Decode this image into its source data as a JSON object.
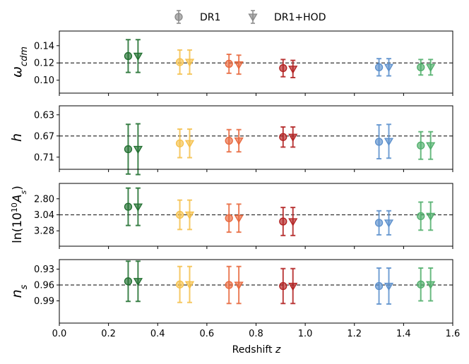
{
  "chart_data": {
    "type": "errorbar",
    "xlabel": "Redshift z",
    "xlim": [
      0.0,
      1.6
    ],
    "xticks": [
      0.0,
      0.2,
      0.4,
      0.6,
      0.8,
      1.0,
      1.2,
      1.4,
      1.6
    ],
    "xtick_labels": [
      "0.0",
      "0.2",
      "0.4",
      "0.6",
      "0.8",
      "1.0",
      "1.2",
      "1.4",
      "1.6"
    ],
    "legend": [
      {
        "name": "DR1",
        "marker": "circle"
      },
      {
        "name": "DR1+HOD",
        "marker": "triangle-down"
      }
    ],
    "bin_colors": [
      "#1f6e2e",
      "#f5c04a",
      "#e8673c",
      "#b22020",
      "#5b8fcc",
      "#4fae6a"
    ],
    "panels": [
      {
        "ylabel": "ω_cdm",
        "yinverted": true,
        "ylim": [
          0.157,
          0.085
        ],
        "yticks": [
          "0.10",
          "0.12",
          "0.14"
        ],
        "ytick_values": [
          0.1,
          0.12,
          0.14
        ],
        "reference": 0.12,
        "series": [
          {
            "name": "DR1",
            "x": [
              0.28,
              0.49,
              0.69,
              0.91,
              1.3,
              1.47
            ],
            "y": [
              0.128,
              0.121,
              0.119,
              0.114,
              0.115,
              0.115
            ],
            "err_lo": [
              0.019,
              0.014,
              0.011,
              0.01,
              0.01,
              0.009
            ],
            "err_hi": [
              0.019,
              0.014,
              0.011,
              0.01,
              0.01,
              0.009
            ]
          },
          {
            "name": "DR1+HOD",
            "x": [
              0.32,
              0.53,
              0.73,
              0.95,
              1.34,
              1.51
            ],
            "y": [
              0.128,
              0.121,
              0.118,
              0.113,
              0.115,
              0.115
            ],
            "err_lo": [
              0.019,
              0.014,
              0.011,
              0.01,
              0.01,
              0.009
            ],
            "err_hi": [
              0.019,
              0.014,
              0.011,
              0.01,
              0.01,
              0.009
            ]
          }
        ]
      },
      {
        "ylabel": "h",
        "yinverted": true,
        "ylim": [
          0.613,
          0.733
        ],
        "yticks": [
          "0.63",
          "0.67",
          "0.71"
        ],
        "ytick_values": [
          0.63,
          0.67,
          0.71
        ],
        "reference": 0.67,
        "series": [
          {
            "name": "DR1",
            "x": [
              0.28,
              0.49,
              0.69,
              0.91,
              1.3,
              1.47
            ],
            "y": [
              0.695,
              0.684,
              0.679,
              0.672,
              0.681,
              0.688
            ],
            "err_lo": [
              0.047,
              0.027,
              0.021,
              0.019,
              0.032,
              0.026
            ],
            "err_hi": [
              0.047,
              0.027,
              0.021,
              0.019,
              0.032,
              0.026
            ]
          },
          {
            "name": "DR1+HOD",
            "x": [
              0.32,
              0.53,
              0.73,
              0.95,
              1.34,
              1.51
            ],
            "y": [
              0.695,
              0.684,
              0.679,
              0.672,
              0.68,
              0.688
            ],
            "err_lo": [
              0.048,
              0.027,
              0.021,
              0.019,
              0.032,
              0.026
            ],
            "err_hi": [
              0.048,
              0.027,
              0.021,
              0.019,
              0.032,
              0.026
            ]
          }
        ]
      },
      {
        "ylabel": "ln(10^10 A_s)",
        "yinverted": true,
        "ylim": [
          2.57,
          3.51
        ],
        "yticks": [
          "2.80",
          "3.04",
          "3.28"
        ],
        "ytick_values": [
          2.8,
          3.04,
          3.28
        ],
        "reference": 3.04,
        "series": [
          {
            "name": "DR1",
            "x": [
              0.28,
              0.49,
              0.69,
              0.91,
              1.3,
              1.47
            ],
            "y": [
              2.92,
              3.04,
              3.09,
              3.14,
              3.16,
              3.06
            ],
            "err_lo": [
              0.28,
              0.22,
              0.21,
              0.21,
              0.18,
              0.21
            ],
            "err_hi": [
              0.28,
              0.22,
              0.21,
              0.21,
              0.18,
              0.21
            ]
          },
          {
            "name": "DR1+HOD",
            "x": [
              0.32,
              0.53,
              0.73,
              0.95,
              1.34,
              1.51
            ],
            "y": [
              2.92,
              3.04,
              3.09,
              3.14,
              3.16,
              3.06
            ],
            "err_lo": [
              0.28,
              0.22,
              0.21,
              0.21,
              0.18,
              0.21
            ],
            "err_hi": [
              0.28,
              0.22,
              0.21,
              0.21,
              0.18,
              0.21
            ]
          }
        ]
      },
      {
        "ylabel": "n_s",
        "yinverted": true,
        "ylim": [
          0.912,
          1.032
        ],
        "yticks": [
          "0.93",
          "0.96",
          "0.99"
        ],
        "ytick_values": [
          0.93,
          0.96,
          0.99
        ],
        "reference": 0.96,
        "series": [
          {
            "name": "DR1",
            "x": [
              0.28,
              0.49,
              0.69,
              0.91,
              1.3,
              1.47
            ],
            "y": [
              0.953,
              0.959,
              0.96,
              0.962,
              0.962,
              0.959
            ],
            "err_lo": [
              0.038,
              0.034,
              0.035,
              0.033,
              0.034,
              0.031
            ],
            "err_hi": [
              0.038,
              0.034,
              0.035,
              0.033,
              0.034,
              0.031
            ]
          },
          {
            "name": "DR1+HOD",
            "x": [
              0.32,
              0.53,
              0.73,
              0.95,
              1.34,
              1.51
            ],
            "y": [
              0.953,
              0.959,
              0.96,
              0.962,
              0.962,
              0.959
            ],
            "err_lo": [
              0.038,
              0.034,
              0.035,
              0.033,
              0.034,
              0.031
            ],
            "err_hi": [
              0.038,
              0.034,
              0.035,
              0.033,
              0.034,
              0.031
            ]
          }
        ]
      }
    ]
  }
}
